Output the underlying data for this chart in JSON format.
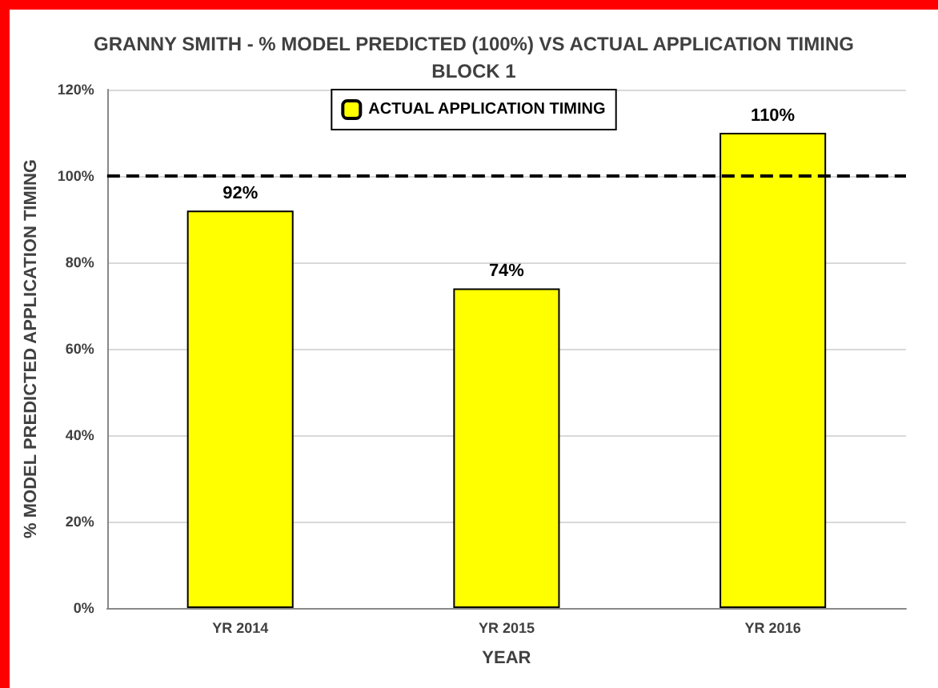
{
  "chart_data": {
    "type": "bar",
    "title": "GRANNY SMITH - % MODEL PREDICTED (100%) VS ACTUAL APPLICATION TIMING\nBLOCK 1",
    "xlabel": "YEAR",
    "ylabel": "% MODEL PREDICTED APPLICATION TIMING",
    "categories": [
      "YR 2014",
      "YR 2015",
      "YR 2016"
    ],
    "series": [
      {
        "name": "ACTUAL APPLICATION TIMING",
        "color": "#ffff00",
        "values": [
          92,
          74,
          110
        ],
        "value_labels": [
          "92%",
          "74%",
          "110%"
        ]
      }
    ],
    "ylim": [
      0,
      120
    ],
    "yticks": [
      {
        "value": 0,
        "label": "0%"
      },
      {
        "value": 20,
        "label": "20%"
      },
      {
        "value": 40,
        "label": "40%"
      },
      {
        "value": 60,
        "label": "60%"
      },
      {
        "value": 80,
        "label": "80%"
      },
      {
        "value": 100,
        "label": "100%"
      },
      {
        "value": 120,
        "label": "120%"
      }
    ],
    "grid": "y",
    "legend": "top",
    "ref_lines": [
      {
        "axis": "y",
        "value": 100,
        "color": "#000000",
        "line_style": "dashed"
      }
    ]
  }
}
